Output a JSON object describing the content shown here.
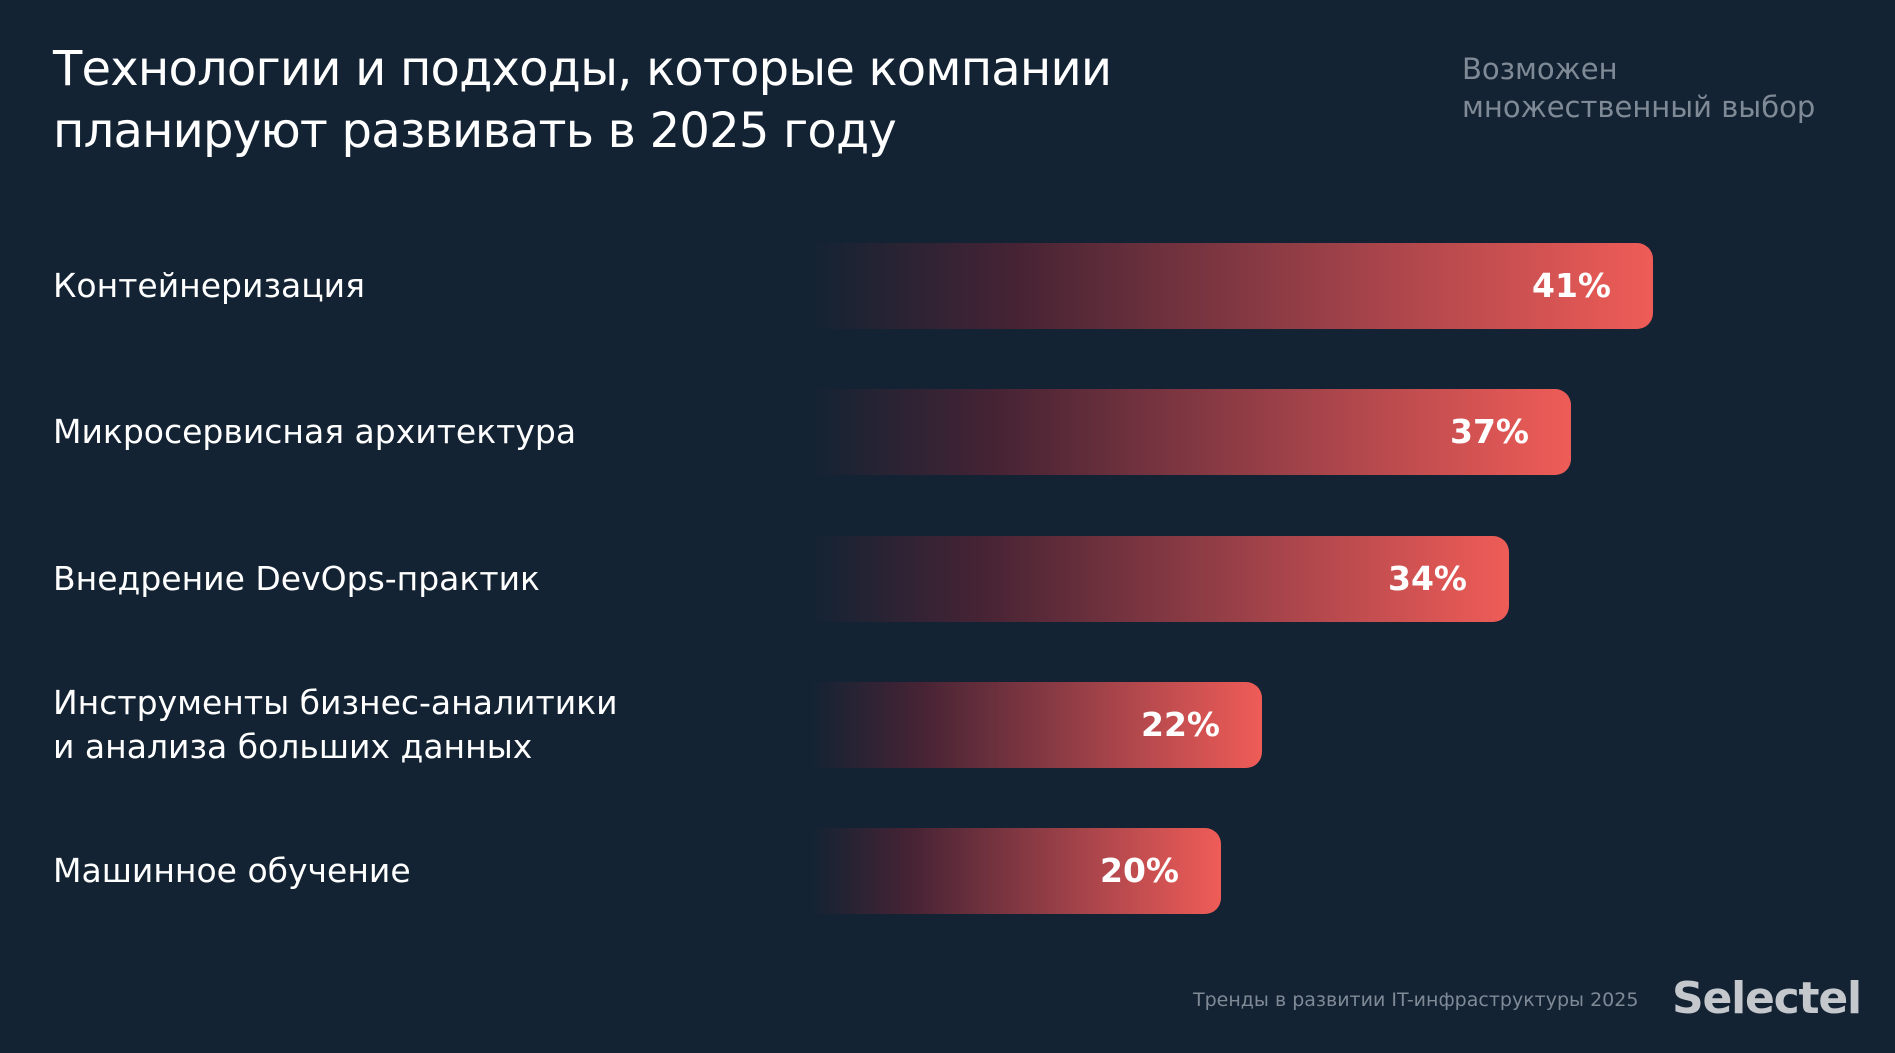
{
  "header": {
    "title_line_1": "Технологии и подходы, которые компании",
    "title_line_2": "планируют развивать в 2025 году",
    "note_line_1": "Возможен",
    "note_line_2": "множественный выбор"
  },
  "chart_data": {
    "type": "bar",
    "orientation": "horizontal",
    "categories": [
      "Контейнеризация",
      "Микросервисная архитектура",
      "Внедрение DevOps-практик",
      "Инструменты бизнес-аналитики\nи анализа больших данных",
      "Машинное обучение"
    ],
    "values": [
      41,
      37,
      34,
      22,
      20
    ],
    "value_labels": [
      "41%",
      "37%",
      "34%",
      "22%",
      "20%"
    ],
    "title": "Технологии и подходы, которые компании планируют развивать в 2025 году",
    "xlabel": "",
    "ylabel": "",
    "xlim": [
      0,
      41
    ],
    "grid": false,
    "legend": "none",
    "bar_color_start": "#132333",
    "bar_color_end": "#ef5c57"
  },
  "footer": {
    "source": "Тренды в развитии IT-инфраструктуры 2025",
    "logo": "Selectel"
  },
  "colors": {
    "background": "#132333",
    "text": "#ffffff",
    "muted_text": "#7f8a96",
    "accent": "#ef5c57"
  }
}
